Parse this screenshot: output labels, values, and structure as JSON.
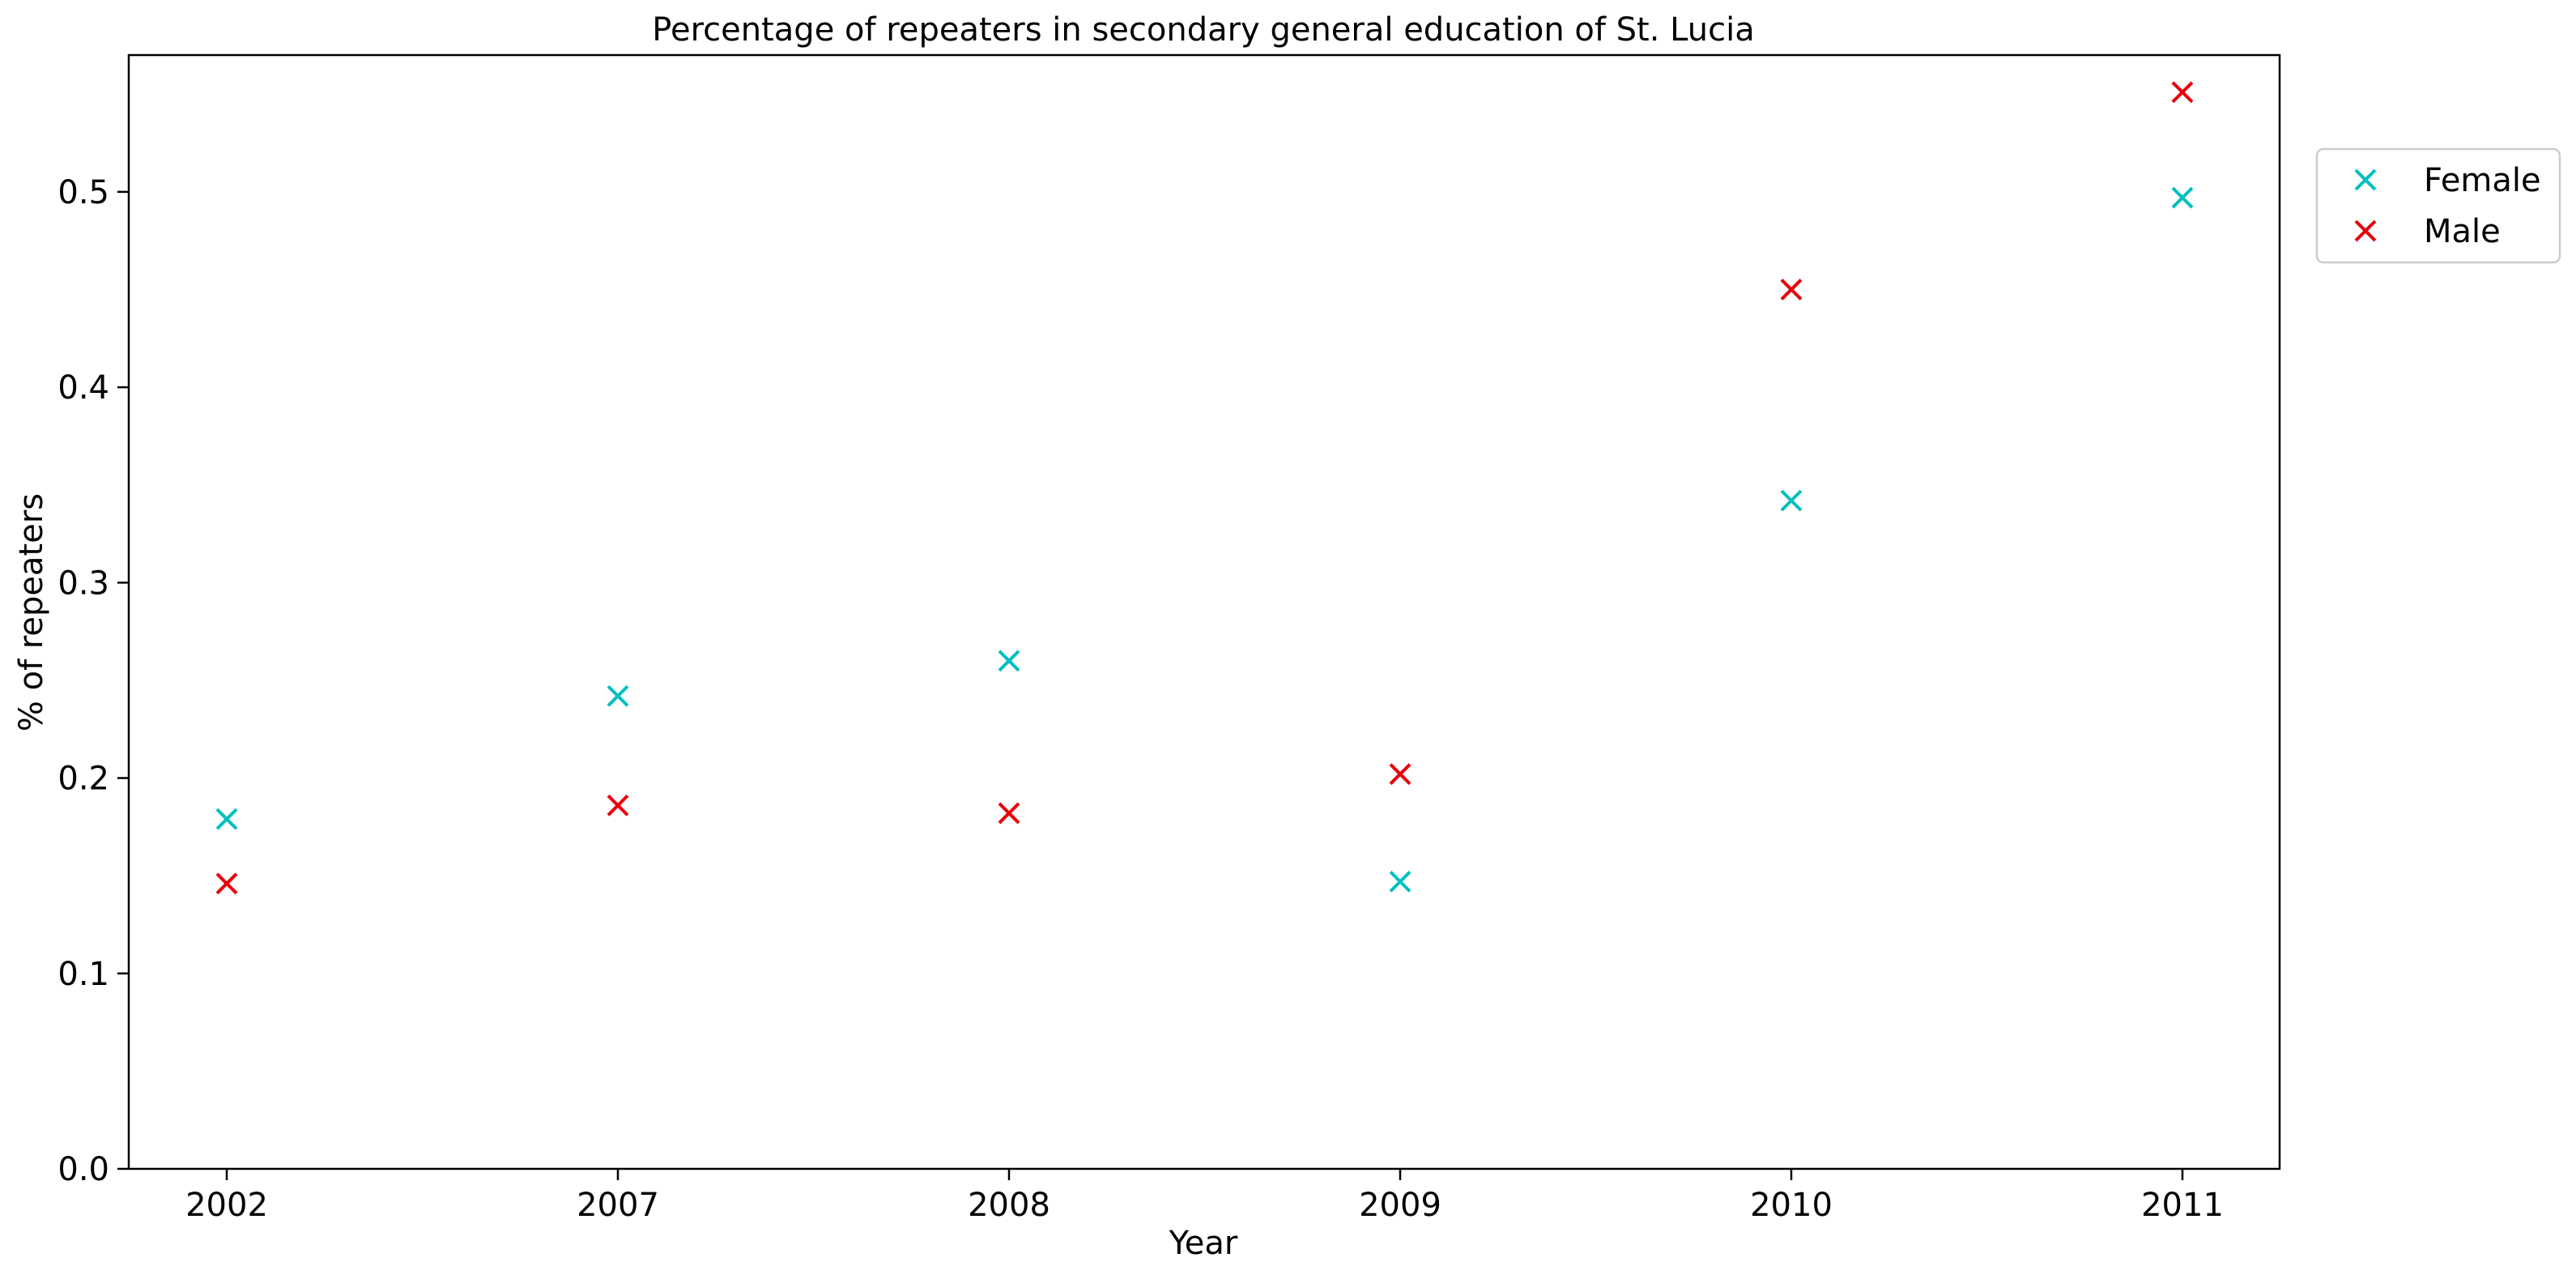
{
  "chart_data": {
    "type": "scatter",
    "title": "Percentage of repeaters in secondary general education of St. Lucia",
    "xlabel": "Year",
    "ylabel": "% of repeaters",
    "categories": [
      "2002",
      "2007",
      "2008",
      "2009",
      "2010",
      "2011"
    ],
    "yticks": [
      "0.0",
      "0.1",
      "0.2",
      "0.3",
      "0.4",
      "0.5"
    ],
    "ylim": [
      0,
      0.57
    ],
    "grid": false,
    "legend_position": "top-right, outside plot area",
    "marker": "x",
    "series": [
      {
        "name": "Female",
        "color": "#00bfbf",
        "values": [
          0.179,
          0.242,
          0.26,
          0.147,
          0.342,
          0.497
        ]
      },
      {
        "name": "Male",
        "color": "#e8000b",
        "values": [
          0.146,
          0.186,
          0.182,
          0.202,
          0.45,
          0.551
        ]
      }
    ]
  }
}
